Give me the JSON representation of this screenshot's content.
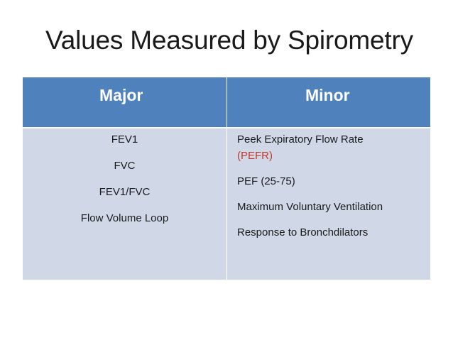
{
  "slide": {
    "title": "Values Measured by Spirometry"
  },
  "table": {
    "headers": {
      "major": "Major",
      "minor": "Minor"
    },
    "major_items": [
      "FEV1",
      "FVC",
      "FEV1/FVC",
      "Flow Volume Loop"
    ],
    "minor_items": [
      {
        "text": "Peek Expiratory Flow Rate",
        "highlight": "(PEFR)"
      },
      {
        "text": "PEF (25-75)"
      },
      {
        "text": "Maximum Voluntary Ventilation"
      },
      {
        "text": "Response to Bronchdilators"
      }
    ],
    "colors": {
      "header_bg": "#4f81bd",
      "body_bg": "#d0d8e8",
      "highlight_text": "#c0392b"
    }
  }
}
